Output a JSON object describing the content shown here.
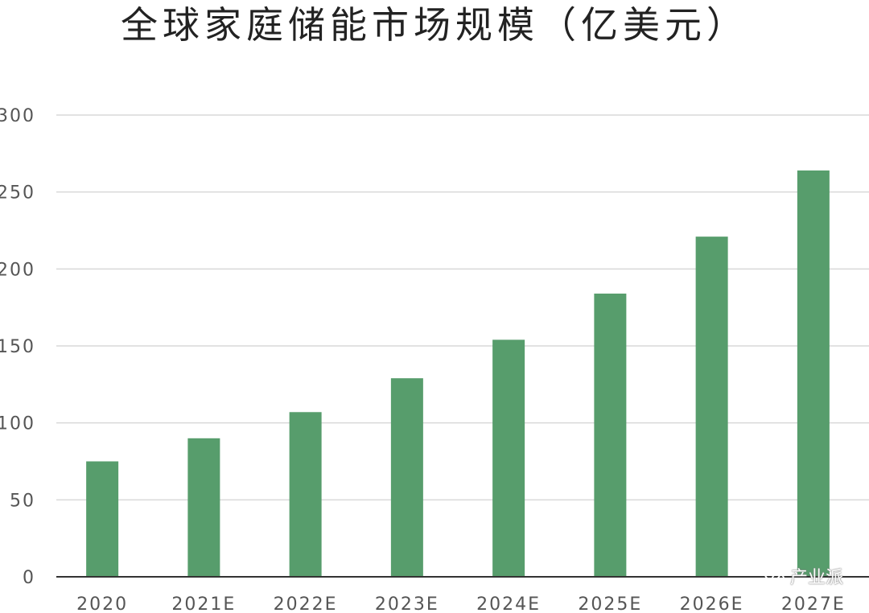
{
  "title": "全球家庭储能市场规模（亿美元）",
  "watermark": "产业派",
  "colors": {
    "bar": "#579d6c",
    "grid": "#d9d9d9",
    "axis": "#333333",
    "title": "#222222"
  },
  "chart_data": {
    "type": "bar",
    "title": "全球家庭储能市场规模（亿美元）",
    "categories": [
      "2020",
      "2021E",
      "2022E",
      "2023E",
      "2024E",
      "2025E",
      "2026E",
      "2027E"
    ],
    "values": [
      75,
      90,
      107,
      129,
      154,
      184,
      221,
      264
    ],
    "y_ticks": [
      "0",
      "50",
      "100",
      "150",
      "200",
      "250",
      "300"
    ],
    "xlabel": "",
    "ylabel": "",
    "ylim": [
      0,
      300
    ],
    "grid": true,
    "legend": "none"
  }
}
